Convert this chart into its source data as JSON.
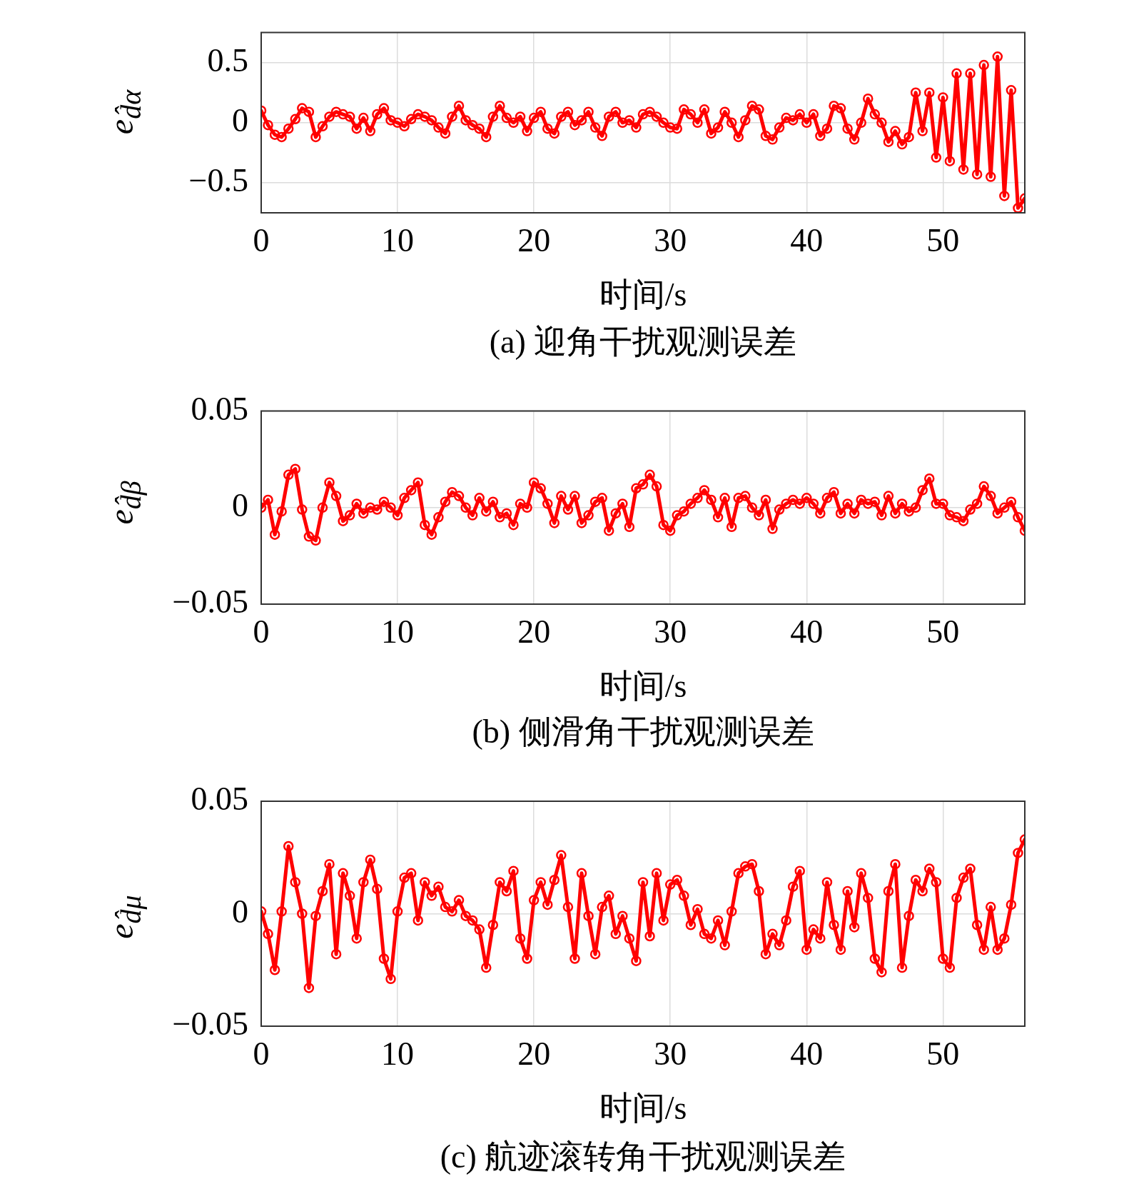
{
  "chart_data": [
    {
      "type": "line",
      "title": "(a) 迎角干扰观测误差",
      "xlabel": "时间/s",
      "ylabel": "e$_{d̂α}$",
      "xlim": [
        0,
        56
      ],
      "xticks": [
        0,
        10,
        20,
        30,
        40,
        50
      ],
      "ylim": [
        -0.75,
        0.75
      ],
      "yticks": [
        -0.5,
        0,
        0.5
      ],
      "grid": true,
      "marker": "circle",
      "line_style": "solid",
      "x": [
        0,
        0.5,
        1,
        1.5,
        2,
        2.5,
        3,
        3.5,
        4,
        4.5,
        5,
        5.5,
        6,
        6.5,
        7,
        7.5,
        8,
        8.5,
        9,
        9.5,
        10,
        10.5,
        11,
        11.5,
        12,
        12.5,
        13,
        13.5,
        14,
        14.5,
        15,
        15.5,
        16,
        16.5,
        17,
        17.5,
        18,
        18.5,
        19,
        19.5,
        20,
        20.5,
        21,
        21.5,
        22,
        22.5,
        23,
        23.5,
        24,
        24.5,
        25,
        25.5,
        26,
        26.5,
        27,
        27.5,
        28,
        28.5,
        29,
        29.5,
        30,
        30.5,
        31,
        31.5,
        32,
        32.5,
        33,
        33.5,
        34,
        34.5,
        35,
        35.5,
        36,
        36.5,
        37,
        37.5,
        38,
        38.5,
        39,
        39.5,
        40,
        40.5,
        41,
        41.5,
        42,
        42.5,
        43,
        43.5,
        44,
        44.5,
        45,
        45.5,
        46,
        46.5,
        47,
        47.5,
        48,
        48.5,
        49,
        49.5,
        50,
        50.5,
        51,
        51.5,
        52,
        52.5,
        53,
        53.5,
        54,
        54.5,
        55,
        55.5,
        56
      ],
      "series": [
        {
          "color": "#ff0000",
          "values": [
            0.1,
            -0.02,
            -0.1,
            -0.12,
            -0.05,
            0.03,
            0.12,
            0.09,
            -0.12,
            -0.03,
            0.05,
            0.09,
            0.07,
            0.05,
            -0.05,
            0.04,
            -0.07,
            0.07,
            0.12,
            0.02,
            0,
            -0.03,
            0.03,
            0.07,
            0.05,
            0.02,
            -0.04,
            -0.09,
            0.05,
            0.14,
            0.02,
            -0.02,
            -0.05,
            -0.12,
            0.05,
            0.14,
            0.04,
            0,
            0.05,
            -0.07,
            0.04,
            0.09,
            -0.05,
            -0.09,
            0.05,
            0.09,
            -0.02,
            0.02,
            0.09,
            -0.04,
            -0.11,
            0.05,
            0.09,
            0,
            0.02,
            -0.04,
            0.07,
            0.09,
            0.05,
            0,
            -0.04,
            -0.05,
            0.11,
            0.07,
            0,
            0.11,
            -0.09,
            -0.04,
            0.09,
            0,
            -0.12,
            0.02,
            0.14,
            0.11,
            -0.11,
            -0.14,
            -0.04,
            0.04,
            0.02,
            0.07,
            0,
            0.07,
            -0.11,
            -0.05,
            0.14,
            0.12,
            -0.05,
            -0.14,
            0,
            0.2,
            0.07,
            0,
            -0.16,
            -0.07,
            -0.18,
            -0.12,
            0.25,
            -0.07,
            0.25,
            -0.29,
            0.21,
            -0.32,
            0.41,
            -0.39,
            0.41,
            -0.43,
            0.48,
            -0.45,
            0.55,
            -0.61,
            0.27,
            -0.71,
            -0.63
          ]
        }
      ]
    },
    {
      "type": "line",
      "title": "(b) 侧滑角干扰观测误差",
      "xlabel": "时间/s",
      "ylabel": "e$_{d̂β}$",
      "xlim": [
        0,
        56
      ],
      "xticks": [
        0,
        10,
        20,
        30,
        40,
        50
      ],
      "ylim": [
        -0.05,
        0.05
      ],
      "yticks": [
        -0.05,
        0,
        0.05
      ],
      "grid": true,
      "marker": "circle",
      "line_style": "solid",
      "x": [
        0,
        0.5,
        1,
        1.5,
        2,
        2.5,
        3,
        3.5,
        4,
        4.5,
        5,
        5.5,
        6,
        6.5,
        7,
        7.5,
        8,
        8.5,
        9,
        9.5,
        10,
        10.5,
        11,
        11.5,
        12,
        12.5,
        13,
        13.5,
        14,
        14.5,
        15,
        15.5,
        16,
        16.5,
        17,
        17.5,
        18,
        18.5,
        19,
        19.5,
        20,
        20.5,
        21,
        21.5,
        22,
        22.5,
        23,
        23.5,
        24,
        24.5,
        25,
        25.5,
        26,
        26.5,
        27,
        27.5,
        28,
        28.5,
        29,
        29.5,
        30,
        30.5,
        31,
        31.5,
        32,
        32.5,
        33,
        33.5,
        34,
        34.5,
        35,
        35.5,
        36,
        36.5,
        37,
        37.5,
        38,
        38.5,
        39,
        39.5,
        40,
        40.5,
        41,
        41.5,
        42,
        42.5,
        43,
        43.5,
        44,
        44.5,
        45,
        45.5,
        46,
        46.5,
        47,
        47.5,
        48,
        48.5,
        49,
        49.5,
        50,
        50.5,
        51,
        51.5,
        52,
        52.5,
        53,
        53.5,
        54,
        54.5,
        55,
        55.5,
        56
      ],
      "series": [
        {
          "color": "#ff0000",
          "values": [
            0,
            0.004,
            -0.014,
            -0.002,
            0.017,
            0.02,
            -0.001,
            -0.015,
            -0.017,
            0,
            0.013,
            0.006,
            -0.007,
            -0.004,
            0.002,
            -0.003,
            0,
            -0.001,
            0.003,
            0,
            -0.004,
            0.005,
            0.009,
            0.013,
            -0.009,
            -0.014,
            -0.005,
            0.003,
            0.008,
            0.006,
            0,
            -0.004,
            0.005,
            -0.002,
            0.003,
            -0.005,
            -0.003,
            -0.009,
            0.002,
            0,
            0.013,
            0.01,
            0.002,
            -0.008,
            0.006,
            -0.001,
            0.006,
            -0.008,
            -0.004,
            0.003,
            0.005,
            -0.012,
            -0.003,
            0.002,
            -0.01,
            0.01,
            0.012,
            0.017,
            0.011,
            -0.009,
            -0.012,
            -0.004,
            -0.002,
            0.002,
            0.005,
            0.009,
            0.004,
            -0.005,
            0.005,
            -0.01,
            0.005,
            0.006,
            0,
            -0.004,
            0.004,
            -0.011,
            -0.001,
            0.002,
            0.004,
            0.002,
            0.005,
            0.002,
            -0.003,
            0.005,
            0.008,
            -0.003,
            0.002,
            -0.003,
            0.004,
            0.002,
            0.003,
            -0.004,
            0.006,
            -0.003,
            0.002,
            -0.002,
            0,
            0.009,
            0.015,
            0.002,
            0.002,
            -0.004,
            -0.005,
            -0.007,
            -0.001,
            0.002,
            0.011,
            0.006,
            -0.003,
            0,
            0.003,
            -0.005,
            -0.012
          ]
        }
      ]
    },
    {
      "type": "line",
      "title": "(c) 航迹滚转角干扰观测误差",
      "xlabel": "时间/s",
      "ylabel": "e$_{d̂μ}$",
      "xlim": [
        0,
        56
      ],
      "xticks": [
        0,
        10,
        20,
        30,
        40,
        50
      ],
      "ylim": [
        -0.05,
        0.05
      ],
      "yticks": [
        -0.05,
        0,
        0.05
      ],
      "grid": true,
      "marker": "circle",
      "line_style": "solid",
      "x": [
        0,
        0.5,
        1,
        1.5,
        2,
        2.5,
        3,
        3.5,
        4,
        4.5,
        5,
        5.5,
        6,
        6.5,
        7,
        7.5,
        8,
        8.5,
        9,
        9.5,
        10,
        10.5,
        11,
        11.5,
        12,
        12.5,
        13,
        13.5,
        14,
        14.5,
        15,
        15.5,
        16,
        16.5,
        17,
        17.5,
        18,
        18.5,
        19,
        19.5,
        20,
        20.5,
        21,
        21.5,
        22,
        22.5,
        23,
        23.5,
        24,
        24.5,
        25,
        25.5,
        26,
        26.5,
        27,
        27.5,
        28,
        28.5,
        29,
        29.5,
        30,
        30.5,
        31,
        31.5,
        32,
        32.5,
        33,
        33.5,
        34,
        34.5,
        35,
        35.5,
        36,
        36.5,
        37,
        37.5,
        38,
        38.5,
        39,
        39.5,
        40,
        40.5,
        41,
        41.5,
        42,
        42.5,
        43,
        43.5,
        44,
        44.5,
        45,
        45.5,
        46,
        46.5,
        47,
        47.5,
        48,
        48.5,
        49,
        49.5,
        50,
        50.5,
        51,
        51.5,
        52,
        52.5,
        53,
        53.5,
        54,
        54.5,
        55,
        55.5,
        56
      ],
      "series": [
        {
          "color": "#ff0000",
          "values": [
            0.001,
            -0.009,
            -0.025,
            0.001,
            0.03,
            0.014,
            0,
            -0.033,
            -0.001,
            0.01,
            0.022,
            -0.018,
            0.018,
            0.008,
            -0.011,
            0.014,
            0.024,
            0.011,
            -0.02,
            -0.029,
            0.001,
            0.016,
            0.018,
            -0.003,
            0.014,
            0.008,
            0.012,
            0.003,
            0.001,
            0.006,
            -0.001,
            -0.003,
            -0.007,
            -0.024,
            -0.005,
            0.014,
            0.01,
            0.019,
            -0.011,
            -0.02,
            0.006,
            0.014,
            0.004,
            0.015,
            0.026,
            0.003,
            -0.02,
            0.018,
            -0.001,
            -0.018,
            0.003,
            0.008,
            -0.009,
            -0.001,
            -0.011,
            -0.021,
            0.014,
            -0.01,
            0.018,
            -0.003,
            0.013,
            0.015,
            0.008,
            -0.005,
            0.002,
            -0.009,
            -0.011,
            -0.003,
            -0.014,
            0.001,
            0.018,
            0.021,
            0.022,
            0.01,
            -0.018,
            -0.009,
            -0.014,
            -0.003,
            0.012,
            0.019,
            -0.016,
            -0.007,
            -0.011,
            0.014,
            -0.005,
            -0.016,
            0.01,
            -0.006,
            0.018,
            0.007,
            -0.02,
            -0.026,
            0.01,
            0.022,
            -0.024,
            -0.001,
            0.015,
            0.01,
            0.02,
            0.014,
            -0.02,
            -0.024,
            0.007,
            0.016,
            0.02,
            -0.005,
            -0.016,
            0.003,
            -0.016,
            -0.011,
            0.004,
            0.027,
            0.033
          ]
        }
      ]
    }
  ]
}
